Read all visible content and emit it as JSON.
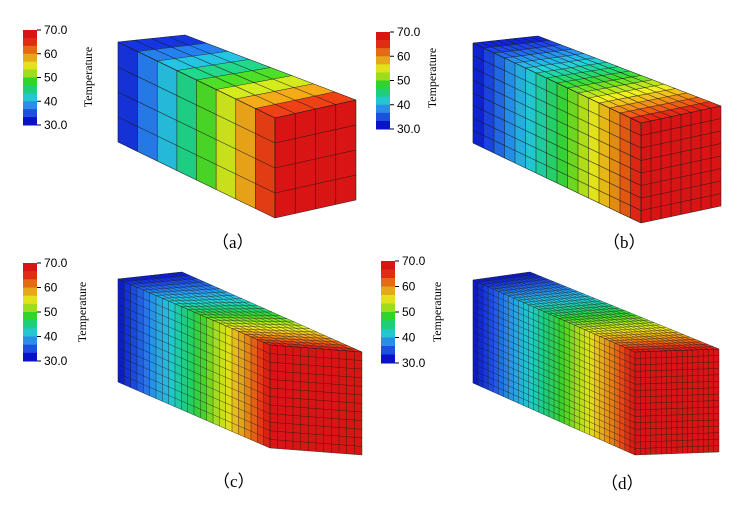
{
  "colorbar": {
    "title": "Temperature",
    "min": 30,
    "max": 70,
    "tick_labels": [
      "70.0",
      "60",
      "50",
      "40",
      "30.0"
    ],
    "tick_values": [
      70,
      60,
      50,
      40,
      30
    ],
    "colors": [
      "#0a12c8",
      "#1f4fe0",
      "#2a8ee8",
      "#22c7cf",
      "#1ecf7a",
      "#2fd52a",
      "#9fdc1c",
      "#e2e21c",
      "#e6a818",
      "#e46a14",
      "#e02c14",
      "#d81414"
    ]
  },
  "panels": [
    {
      "caption": "（a）",
      "mesh": {
        "cols_length": 8,
        "cols_depth": 4,
        "rows": 4,
        "face_cols": 4,
        "face_rows": 4
      }
    },
    {
      "caption": "（b）",
      "mesh": {
        "cols_length": 16,
        "cols_depth": 8,
        "rows": 8,
        "face_cols": 8,
        "face_rows": 8
      }
    },
    {
      "caption": "（c）",
      "mesh": {
        "cols_length": 24,
        "cols_depth": 12,
        "rows": 12,
        "face_cols": 12,
        "face_rows": 12
      }
    },
    {
      "caption": "（d）",
      "mesh": {
        "cols_length": 32,
        "cols_depth": 16,
        "rows": 16,
        "face_cols": 16,
        "face_rows": 16
      }
    }
  ]
}
